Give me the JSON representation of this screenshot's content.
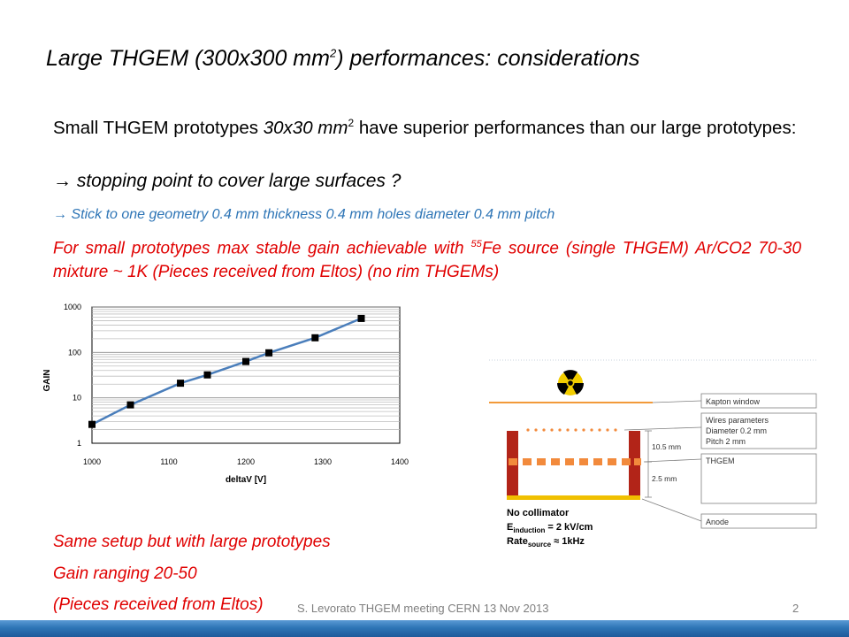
{
  "slide": {
    "title_main": "Large THGEM (300x300 mm",
    "title_sup": "2",
    "title_end": ")  performances: considerations",
    "p1_a": "Small THGEM prototypes ",
    "p1_b": "30x30 mm",
    "p1_sup": "2",
    "p1_c": " have superior performances than our large prototypes:",
    "arrow1": "→  stopping point to cover large surfaces ?",
    "arrow2": "→ Stick to one geometry 0.4 mm thickness 0.4 mm holes diameter 0.4 mm pitch",
    "red_a": "For small prototypes max stable gain achievable with ",
    "red_sup": "55",
    "red_b": "Fe source (single THGEM)  Ar/CO2 70-30 mixture ~ 1K  (Pieces received  from Eltos) (no rim THGEMs)",
    "line1": "Same setup but with large prototypes",
    "line2": "Gain ranging 20-50",
    "line3": "(Pieces received  from Eltos)",
    "footer": "S. Levorato THGEM meeting CERN 13 Nov 2013",
    "page": "2"
  },
  "chart_data": {
    "type": "scatter",
    "xlabel": "deltaV [V]",
    "ylabel": "GAIN",
    "xlim": [
      1000,
      1400
    ],
    "ylim": [
      1,
      1000
    ],
    "yscale": "log",
    "xticks": [
      "1000",
      "1100",
      "1200",
      "1300",
      "1400"
    ],
    "yticks": [
      "1",
      "10",
      "100",
      "1000"
    ],
    "grid": "horizontal minor log grid",
    "series": [
      {
        "x": [
          1000,
          1050,
          1115,
          1150,
          1200,
          1230,
          1290,
          1350
        ],
        "y": [
          2.6,
          7,
          21,
          32,
          63,
          98,
          210,
          560
        ]
      }
    ],
    "marker_color": "#000000",
    "curve_color": "#4a7ebb"
  },
  "diagram": {
    "labels": {
      "kapton": "Kapton window",
      "wires1": "Wires parameters",
      "wires2": "Diameter 0.2 mm",
      "wires3": "Pitch 2 mm",
      "thgem": "THGEM",
      "anode": "Anode",
      "d1": "10.5 mm",
      "d2": "2.5 mm"
    },
    "legend": {
      "nocoll": "No collimator",
      "e_main": "E",
      "e_sub": "induction",
      "e_val": " = 2 kV/cm",
      "r_main": "Rate",
      "r_sub": "source",
      "r_val": " ≈ 1kHz"
    },
    "colors": {
      "source": "#f2cd00",
      "wall": "#b22418",
      "thgem": "#f28a3c",
      "anode": "#f0c000",
      "kapton": "#f29a3a"
    }
  }
}
